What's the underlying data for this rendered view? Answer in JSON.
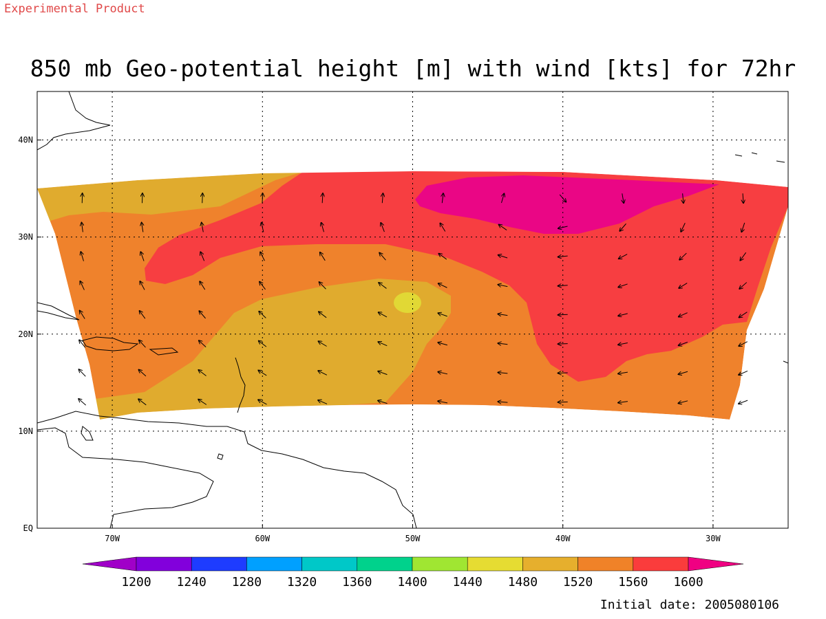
{
  "header": {
    "product_label": "Experimental Product",
    "title": "850 mb Geo-potential height [m] with wind [kts] for 72hr"
  },
  "footer": {
    "initial_date": "Initial date: 2005080106"
  },
  "map": {
    "projection": "Mercator",
    "lon_range": [
      -75,
      -25
    ],
    "lat_range": [
      0,
      45
    ],
    "grid": true,
    "grid_style": "dotted",
    "lon_ticks": [
      {
        "value": -70,
        "label": "70W"
      },
      {
        "value": -60,
        "label": "60W"
      },
      {
        "value": -50,
        "label": "50W"
      },
      {
        "value": -40,
        "label": "40W"
      },
      {
        "value": -30,
        "label": "30W"
      }
    ],
    "lat_ticks": [
      {
        "value": 0,
        "label": "EQ"
      },
      {
        "value": 10,
        "label": "10N"
      },
      {
        "value": 20,
        "label": "20N"
      },
      {
        "value": 30,
        "label": "30N"
      },
      {
        "value": 40,
        "label": "40N"
      }
    ],
    "data_domain": {
      "lon_range": [
        -75,
        -25
      ],
      "lat_range": [
        11,
        36.5
      ]
    },
    "fields": {
      "height_bands": [
        {
          "level": "1480-1520",
          "color": "#e0ab2e"
        },
        {
          "level": "1520-1560",
          "color": "#ef822c"
        },
        {
          "level": "1560-1600",
          "color": "#f73e41"
        },
        {
          "level": ">1600",
          "color": "#ea0685"
        },
        {
          "level": "1440-1480",
          "color": "#e1d835"
        }
      ],
      "height_max_center": {
        "lon": -40,
        "lat": 33,
        "level": ">1600"
      },
      "height_min_center": {
        "lon": -50,
        "lat": 23,
        "level": "1440-1480"
      }
    },
    "wind_vectors_visible": true
  },
  "colorbar": {
    "labels": [
      "1200",
      "1240",
      "1280",
      "1320",
      "1360",
      "1400",
      "1440",
      "1480",
      "1520",
      "1560",
      "1600"
    ],
    "colors": [
      "#a000c8",
      "#8200dc",
      "#1e3cff",
      "#00a0ff",
      "#00c8c8",
      "#00d28c",
      "#a0e632",
      "#e6dc32",
      "#e6af2d",
      "#f08228",
      "#fa3c3c",
      "#f00082"
    ]
  }
}
